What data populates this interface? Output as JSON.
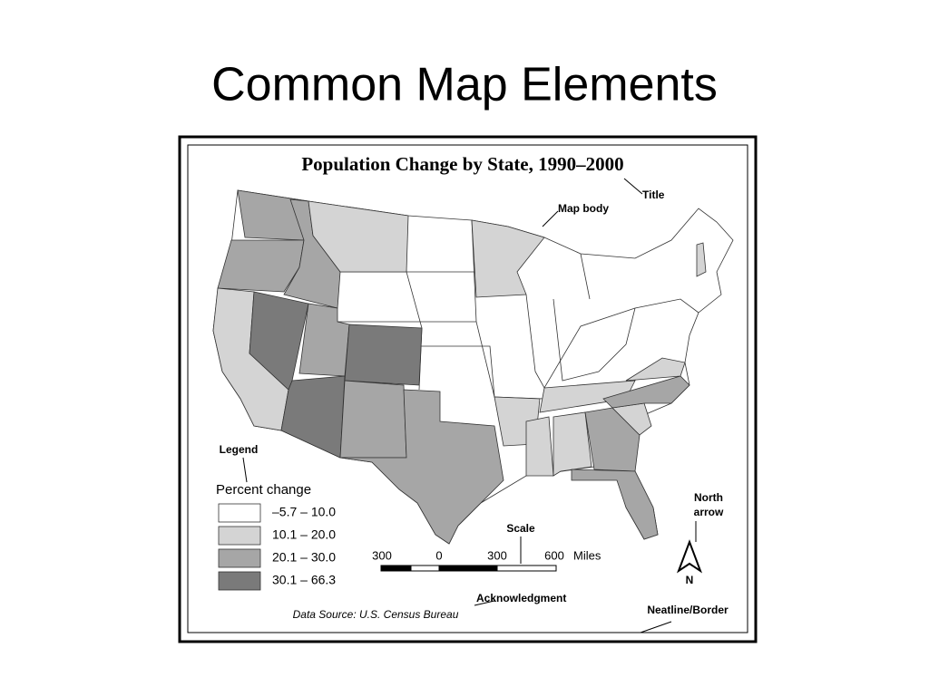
{
  "slide_title": "Common Map Elements",
  "map": {
    "title": "Population Change by State, 1990–2000",
    "annotations": {
      "title": "Title",
      "map_body": "Map body",
      "legend": "Legend",
      "north_arrow": [
        "North",
        "arrow"
      ],
      "scale": "Scale",
      "acknowledgment": "Acknowledgment",
      "neatline": "Neatline/Border"
    },
    "legend": {
      "title": "Percent change",
      "items": [
        {
          "label": "–5.7 – 10.0",
          "color": "#ffffff"
        },
        {
          "label": "10.1 – 20.0",
          "color": "#d4d4d4"
        },
        {
          "label": "20.1 – 30.0",
          "color": "#a6a6a6"
        },
        {
          "label": "30.1 – 66.3",
          "color": "#7a7a7a"
        }
      ]
    },
    "scale": {
      "labels": [
        "300",
        "0",
        "300",
        "600"
      ],
      "unit": "Miles"
    },
    "north": "N",
    "data_source": "Data Source: U.S. Census Bureau"
  }
}
